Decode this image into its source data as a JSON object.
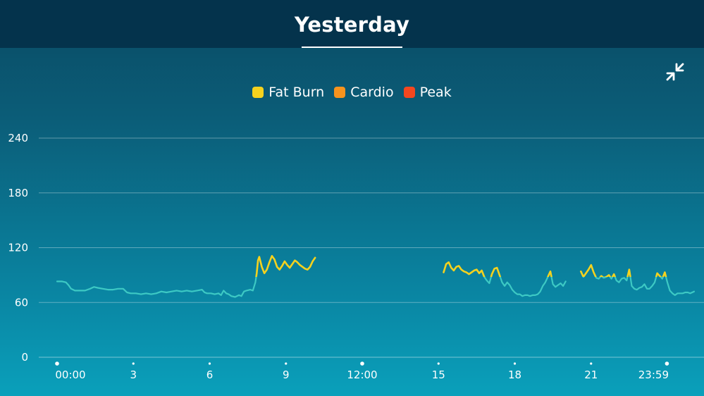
{
  "header": {
    "title": "Yesterday"
  },
  "controls": {
    "collapse_icon": "collapse-arrows-icon"
  },
  "chart_data": {
    "type": "line",
    "title": "",
    "xlabel": "",
    "ylabel": "",
    "ylim": [
      0,
      240
    ],
    "y_ticks": [
      0,
      60,
      120,
      180,
      240
    ],
    "x_unit": "hours",
    "xlim": [
      0,
      24
    ],
    "x_ticks": [
      {
        "value": 0,
        "label": "00:00"
      },
      {
        "value": 3,
        "label": "3"
      },
      {
        "value": 6,
        "label": "6"
      },
      {
        "value": 9,
        "label": "9"
      },
      {
        "value": 12,
        "label": "12:00"
      },
      {
        "value": 15,
        "label": "15"
      },
      {
        "value": 18,
        "label": "18"
      },
      {
        "value": 21,
        "label": "21"
      },
      {
        "value": 23.983,
        "label": "23:59"
      }
    ],
    "grid": true,
    "legend_placement": "top-center",
    "legend": [
      {
        "name": "Fat Burn",
        "color": "#f5d21e"
      },
      {
        "name": "Cardio",
        "color": "#f7931e"
      },
      {
        "name": "Peak",
        "color": "#f4471f"
      }
    ],
    "base_color": "#3dc9c4",
    "fatburn_threshold": 88,
    "series": [
      {
        "points": [
          [
            0,
            83
          ],
          [
            0.2,
            83
          ],
          [
            0.35,
            82
          ],
          [
            0.45,
            79
          ],
          [
            0.55,
            75
          ],
          [
            0.7,
            73
          ],
          [
            0.9,
            73
          ],
          [
            1.1,
            73
          ],
          [
            1.3,
            75
          ],
          [
            1.45,
            77
          ],
          [
            1.6,
            76
          ],
          [
            1.8,
            75
          ],
          [
            2.0,
            74
          ],
          [
            2.2,
            74
          ],
          [
            2.4,
            75
          ],
          [
            2.6,
            75
          ],
          [
            2.75,
            71
          ],
          [
            2.9,
            70
          ],
          [
            3.1,
            70
          ],
          [
            3.3,
            69
          ],
          [
            3.5,
            70
          ],
          [
            3.7,
            69
          ],
          [
            3.9,
            70
          ],
          [
            4.1,
            72
          ],
          [
            4.3,
            71
          ],
          [
            4.5,
            72
          ],
          [
            4.7,
            73
          ],
          [
            4.9,
            72
          ],
          [
            5.1,
            73
          ],
          [
            5.3,
            72
          ],
          [
            5.5,
            73
          ],
          [
            5.7,
            74
          ],
          [
            5.8,
            71
          ],
          [
            5.9,
            70
          ],
          [
            6.05,
            70
          ],
          [
            6.2,
            69
          ],
          [
            6.35,
            70
          ],
          [
            6.45,
            68
          ],
          [
            6.55,
            73
          ],
          [
            6.65,
            70
          ],
          [
            6.75,
            69
          ],
          [
            6.85,
            67
          ],
          [
            7.0,
            66
          ],
          [
            7.15,
            68
          ],
          [
            7.25,
            67
          ],
          [
            7.35,
            72
          ],
          [
            7.45,
            73
          ],
          [
            7.6,
            74
          ],
          [
            7.7,
            73
          ],
          [
            7.8,
            82
          ],
          [
            7.85,
            92
          ],
          [
            7.9,
            106
          ],
          [
            7.95,
            110
          ],
          [
            8.05,
            99
          ],
          [
            8.15,
            92
          ],
          [
            8.25,
            96
          ],
          [
            8.35,
            104
          ],
          [
            8.45,
            111
          ],
          [
            8.55,
            107
          ],
          [
            8.65,
            99
          ],
          [
            8.75,
            96
          ],
          [
            8.85,
            100
          ],
          [
            8.95,
            105
          ],
          [
            9.05,
            101
          ],
          [
            9.15,
            98
          ],
          [
            9.25,
            102
          ],
          [
            9.35,
            106
          ],
          [
            9.45,
            104
          ],
          [
            9.55,
            101
          ],
          [
            9.65,
            99
          ],
          [
            9.75,
            97
          ],
          [
            9.85,
            96
          ],
          [
            9.95,
            99
          ],
          [
            10.05,
            105
          ],
          [
            10.15,
            109
          ]
        ]
      },
      {
        "points": [
          [
            15.2,
            93
          ],
          [
            15.3,
            102
          ],
          [
            15.4,
            104
          ],
          [
            15.5,
            98
          ],
          [
            15.6,
            95
          ],
          [
            15.7,
            99
          ],
          [
            15.8,
            100
          ],
          [
            15.9,
            96
          ],
          [
            16.0,
            94
          ],
          [
            16.1,
            93
          ],
          [
            16.2,
            91
          ],
          [
            16.3,
            93
          ],
          [
            16.4,
            95
          ],
          [
            16.5,
            96
          ],
          [
            16.6,
            92
          ],
          [
            16.7,
            95
          ],
          [
            16.8,
            88
          ],
          [
            16.9,
            84
          ],
          [
            17.0,
            81
          ],
          [
            17.1,
            91
          ],
          [
            17.2,
            97
          ],
          [
            17.3,
            98
          ],
          [
            17.4,
            90
          ],
          [
            17.5,
            82
          ],
          [
            17.6,
            78
          ],
          [
            17.7,
            82
          ],
          [
            17.8,
            79
          ],
          [
            17.9,
            74
          ],
          [
            18.0,
            71
          ],
          [
            18.1,
            69
          ],
          [
            18.2,
            69
          ],
          [
            18.3,
            67
          ],
          [
            18.4,
            68
          ],
          [
            18.5,
            68
          ],
          [
            18.6,
            67
          ],
          [
            18.7,
            68
          ],
          [
            18.8,
            68
          ],
          [
            18.9,
            69
          ],
          [
            19.0,
            72
          ],
          [
            19.1,
            78
          ],
          [
            19.2,
            82
          ],
          [
            19.3,
            88
          ],
          [
            19.4,
            94
          ],
          [
            19.5,
            80
          ],
          [
            19.6,
            77
          ],
          [
            19.7,
            79
          ],
          [
            19.8,
            81
          ],
          [
            19.9,
            78
          ],
          [
            20.0,
            83
          ]
        ]
      },
      {
        "points": [
          [
            20.6,
            94
          ],
          [
            20.7,
            88
          ],
          [
            20.8,
            92
          ],
          [
            20.9,
            96
          ],
          [
            21.0,
            101
          ],
          [
            21.1,
            93
          ],
          [
            21.2,
            87
          ],
          [
            21.3,
            86
          ],
          [
            21.4,
            89
          ],
          [
            21.5,
            87
          ],
          [
            21.6,
            88
          ],
          [
            21.7,
            90
          ],
          [
            21.8,
            86
          ],
          [
            21.9,
            91
          ],
          [
            22.0,
            84
          ],
          [
            22.1,
            82
          ],
          [
            22.2,
            86
          ],
          [
            22.3,
            87
          ],
          [
            22.4,
            84
          ],
          [
            22.5,
            96
          ],
          [
            22.6,
            78
          ],
          [
            22.7,
            75
          ],
          [
            22.8,
            74
          ],
          [
            22.9,
            76
          ],
          [
            23.0,
            77
          ],
          [
            23.1,
            80
          ],
          [
            23.2,
            75
          ],
          [
            23.3,
            75
          ],
          [
            23.4,
            78
          ],
          [
            23.5,
            82
          ],
          [
            23.6,
            92
          ],
          [
            23.7,
            89
          ],
          [
            23.8,
            86
          ],
          [
            23.9,
            93
          ],
          [
            24.0,
            82
          ],
          [
            24.1,
            73
          ],
          [
            24.2,
            70
          ],
          [
            24.3,
            68
          ],
          [
            24.4,
            70
          ],
          [
            24.5,
            70
          ],
          [
            24.6,
            70
          ],
          [
            24.7,
            71
          ],
          [
            24.8,
            71
          ],
          [
            24.9,
            70
          ],
          [
            25.05,
            72
          ]
        ]
      }
    ]
  }
}
